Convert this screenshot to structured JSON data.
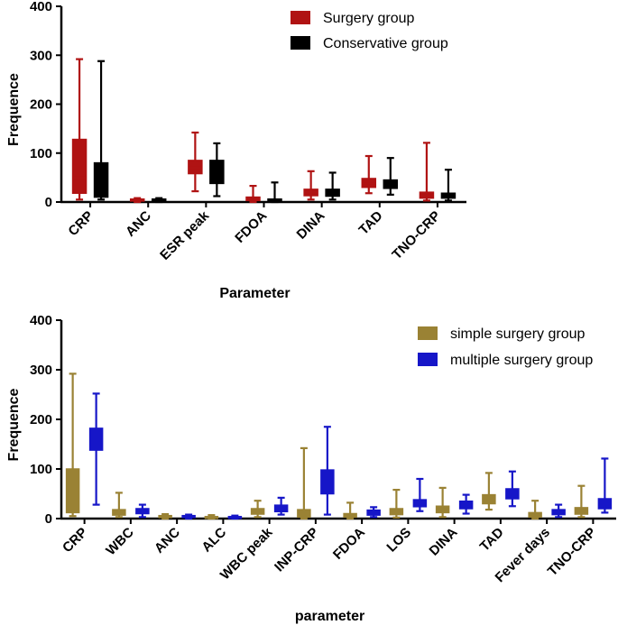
{
  "chart_data": [
    {
      "type": "box",
      "title": "",
      "xlabel": "Parameter",
      "ylabel": "Frequence",
      "ylim": [
        0,
        400
      ],
      "yticks": [
        "0",
        "100",
        "200",
        "300",
        "400"
      ],
      "categories": [
        "CRP",
        "ANC",
        "ESR peak",
        "FDOA",
        "DINA",
        "TAD",
        "TNO-CRP"
      ],
      "legend_position": "top-right",
      "series": [
        {
          "name": "Surgery group",
          "color": "#b01313",
          "boxes": [
            {
              "min": 5,
              "q1": 18,
              "median": 50,
              "q3": 128,
              "max": 292
            },
            {
              "min": 0,
              "q1": 2,
              "median": 4,
              "q3": 6,
              "max": 8
            },
            {
              "min": 22,
              "q1": 58,
              "median": 70,
              "q3": 85,
              "max": 142
            },
            {
              "min": 0,
              "q1": 3,
              "median": 6,
              "q3": 10,
              "max": 33
            },
            {
              "min": 5,
              "q1": 13,
              "median": 20,
              "q3": 26,
              "max": 63
            },
            {
              "min": 18,
              "q1": 30,
              "median": 38,
              "q3": 48,
              "max": 94
            },
            {
              "min": 3,
              "q1": 8,
              "median": 13,
              "q3": 20,
              "max": 121
            }
          ]
        },
        {
          "name": "Conservative group",
          "color": "#000000",
          "boxes": [
            {
              "min": 5,
              "q1": 10,
              "median": 40,
              "q3": 80,
              "max": 288
            },
            {
              "min": 0,
              "q1": 2,
              "median": 4,
              "q3": 6,
              "max": 8
            },
            {
              "min": 12,
              "q1": 38,
              "median": 55,
              "q3": 85,
              "max": 120
            },
            {
              "min": 0,
              "q1": 1,
              "median": 3,
              "q3": 6,
              "max": 40
            },
            {
              "min": 5,
              "q1": 12,
              "median": 18,
              "q3": 26,
              "max": 60
            },
            {
              "min": 15,
              "q1": 28,
              "median": 36,
              "q3": 45,
              "max": 90
            },
            {
              "min": 3,
              "q1": 8,
              "median": 12,
              "q3": 18,
              "max": 66
            }
          ]
        }
      ]
    },
    {
      "type": "box",
      "title": "",
      "xlabel": "parameter",
      "ylabel": "Frequence",
      "ylim": [
        0,
        400
      ],
      "yticks": [
        "0",
        "100",
        "200",
        "300",
        "400"
      ],
      "categories": [
        "CRP",
        "WBC",
        "ANC",
        "ALC",
        "WBC peak",
        "INP-CRP",
        "FDOA",
        "LOS",
        "DINA",
        "TAD",
        "Fever days",
        "TNO-CRP"
      ],
      "legend_position": "top-right",
      "series": [
        {
          "name": "simple surgery group",
          "color": "#9a8234",
          "boxes": [
            {
              "min": 5,
              "q1": 12,
              "median": 40,
              "q3": 100,
              "max": 292
            },
            {
              "min": 3,
              "q1": 7,
              "median": 12,
              "q3": 18,
              "max": 52
            },
            {
              "min": 0,
              "q1": 2,
              "median": 4,
              "q3": 6,
              "max": 9
            },
            {
              "min": 0,
              "q1": 1,
              "median": 2,
              "q3": 4,
              "max": 7
            },
            {
              "min": 3,
              "q1": 9,
              "median": 14,
              "q3": 20,
              "max": 36
            },
            {
              "min": 0,
              "q1": 3,
              "median": 8,
              "q3": 18,
              "max": 142
            },
            {
              "min": 0,
              "q1": 3,
              "median": 6,
              "q3": 10,
              "max": 32
            },
            {
              "min": 2,
              "q1": 8,
              "median": 14,
              "q3": 20,
              "max": 58
            },
            {
              "min": 3,
              "q1": 12,
              "median": 18,
              "q3": 25,
              "max": 62
            },
            {
              "min": 18,
              "q1": 30,
              "median": 38,
              "q3": 48,
              "max": 92
            },
            {
              "min": 0,
              "q1": 3,
              "median": 6,
              "q3": 12,
              "max": 36
            },
            {
              "min": 3,
              "q1": 9,
              "median": 14,
              "q3": 22,
              "max": 66
            }
          ]
        },
        {
          "name": "multiple surgery group",
          "color": "#1616c8",
          "boxes": [
            {
              "min": 28,
              "q1": 138,
              "median": 160,
              "q3": 182,
              "max": 252
            },
            {
              "min": 3,
              "q1": 10,
              "median": 15,
              "q3": 20,
              "max": 28
            },
            {
              "min": 0,
              "q1": 2,
              "median": 4,
              "q3": 6,
              "max": 8
            },
            {
              "min": 0,
              "q1": 1,
              "median": 2,
              "q3": 4,
              "max": 6
            },
            {
              "min": 8,
              "q1": 14,
              "median": 20,
              "q3": 27,
              "max": 42
            },
            {
              "min": 8,
              "q1": 50,
              "median": 75,
              "q3": 98,
              "max": 185
            },
            {
              "min": 3,
              "q1": 7,
              "median": 12,
              "q3": 17,
              "max": 23
            },
            {
              "min": 15,
              "q1": 24,
              "median": 30,
              "q3": 38,
              "max": 80
            },
            {
              "min": 10,
              "q1": 20,
              "median": 27,
              "q3": 35,
              "max": 48
            },
            {
              "min": 25,
              "q1": 40,
              "median": 50,
              "q3": 60,
              "max": 95
            },
            {
              "min": 3,
              "q1": 8,
              "median": 12,
              "q3": 18,
              "max": 28
            },
            {
              "min": 12,
              "q1": 20,
              "median": 28,
              "q3": 40,
              "max": 121
            }
          ]
        }
      ]
    }
  ]
}
